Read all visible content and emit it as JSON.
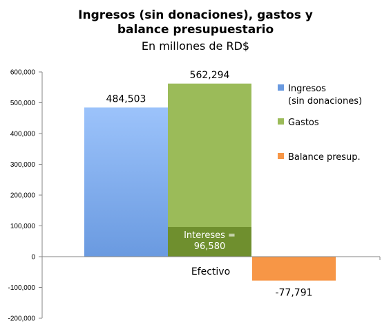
{
  "chart_data": {
    "type": "bar",
    "title": "Ingresos (sin donaciones), gastos y balance presupuestario",
    "subtitle": "En millones de RD$",
    "categories": [
      "Efectivo"
    ],
    "series": [
      {
        "name": "Ingresos (sin donaciones)",
        "legend_lines": [
          "Ingresos",
          "(sin donaciones)"
        ],
        "values": [
          484503
        ],
        "label": "484,503",
        "color": "#6a9ae0",
        "color_light": "#9cc3fb"
      },
      {
        "name": "Gastos",
        "legend_lines": [
          "Gastos"
        ],
        "values": [
          562294
        ],
        "label": "562,294",
        "color": "#9bbb59",
        "color_light": "#9bbb59"
      },
      {
        "name": "Balance presup.",
        "legend_lines": [
          "Balance presup."
        ],
        "values": [
          -77791
        ],
        "label": "-77,791",
        "color": "#f79646",
        "color_light": "#f79646"
      }
    ],
    "annotation": {
      "lines": [
        "Intereses =",
        "96,580"
      ],
      "value": 96580,
      "series": "Gastos",
      "color": "#6f8f2e"
    },
    "ylim": [
      -200000,
      600000
    ],
    "yticks": [
      -200000,
      -100000,
      0,
      100000,
      200000,
      300000,
      400000,
      500000,
      600000
    ],
    "ytick_labels": [
      "-200,000",
      "-100,000",
      "0",
      "100,000",
      "200,000",
      "300,000",
      "400,000",
      "500,000",
      "600,000"
    ],
    "xlabel": "",
    "ylabel": "",
    "grid": false,
    "legend_position": "right"
  }
}
